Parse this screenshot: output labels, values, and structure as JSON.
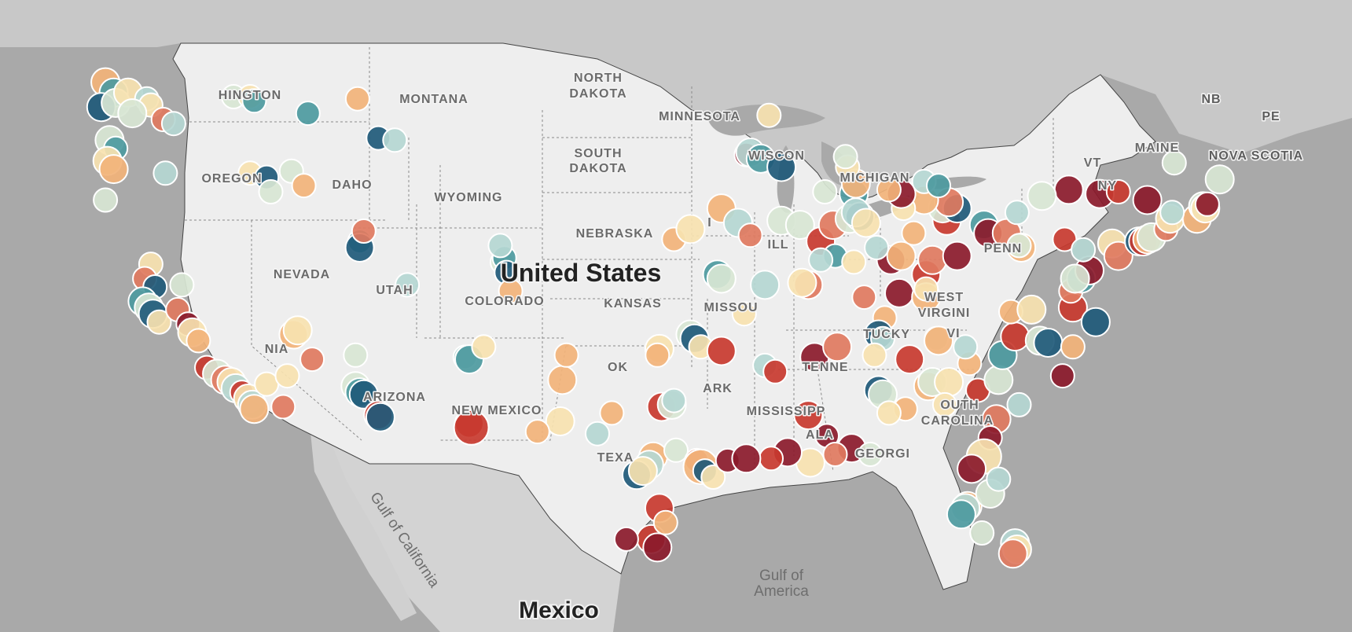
{
  "map": {
    "countries": {
      "us": "United States",
      "mexico": "Mexico"
    },
    "water": {
      "gulf_california": "Gulf of California",
      "gulf_america_1": "Gulf of",
      "gulf_america_2": "America"
    },
    "states": {
      "washington": "HINGTON",
      "oregon": "OREGON",
      "idaho": "DAHO",
      "montana": "MONTANA",
      "wyoming": "WYOMING",
      "nevada": "NEVADA",
      "utah": "UTAH",
      "colorado": "COLORADO",
      "california": "NIA",
      "arizona": "ARIZONA",
      "new_mexico": "NEW MEXICO",
      "north_dakota_1": "NORTH",
      "north_dakota_2": "DAKOTA",
      "south_dakota_1": "SOUTH",
      "south_dakota_2": "DAKOTA",
      "nebraska": "NEBRASKA",
      "kansas": "KANSAS",
      "oklahoma": "OK",
      "texas": "TEXA",
      "minnesota": "MINNESOTA",
      "wisconsin": "WISCON",
      "iowa": "I",
      "missouri": "MISSOU",
      "arkansas": "ARK",
      "mississippi": "MISSISSIPP",
      "illinois": "ILL",
      "michigan": "MICHIGAN",
      "kentucky": "TUCKY",
      "tennessee": "TENNE",
      "alabama": "ALA",
      "georgia": "GEORGI",
      "south_carolina_1": "OUTH",
      "south_carolina_2": "CAROLINA",
      "west_virginia_1": "WEST",
      "west_virginia_2": "VIRGINI",
      "virginia": "VI",
      "pennsylvania": "PENN",
      "maine": "MAINE",
      "vermont": "VT",
      "new_york": "NY"
    },
    "foreign": {
      "nb": "NB",
      "pe": "PE",
      "nova_scotia": "NOVA SCOTIA"
    },
    "colors": {
      "land": "#eeeeee",
      "water": "#a9a9a9",
      "canada": "#c8c8c8",
      "mexico_land": "#d3d3d3",
      "border": "#444444",
      "state_line": "#8a8a8a",
      "scale": [
        "#8b1a2b",
        "#c8392f",
        "#e07a5f",
        "#f2b37a",
        "#f7e2b0",
        "#d8e6d4",
        "#b5d7d2",
        "#4d9aa0",
        "#1f5a7a"
      ]
    }
  },
  "chart_data": {
    "type": "scatter",
    "title": "",
    "description_units": "lon / lat / color index (0 = dark red … 8 = dark teal) / radius class",
    "points": [
      [
        -124.2,
        48.4,
        3,
        1
      ],
      [
        -123.8,
        47.9,
        7,
        1
      ],
      [
        -124.4,
        47.2,
        8,
        1
      ],
      [
        -123.7,
        47.4,
        5,
        1
      ],
      [
        -123.1,
        47.9,
        4,
        1
      ],
      [
        -122.2,
        47.6,
        6,
        0
      ],
      [
        -122.0,
        47.3,
        4,
        0
      ],
      [
        -122.9,
        46.9,
        5,
        1
      ],
      [
        -121.4,
        46.6,
        2,
        0
      ],
      [
        -120.9,
        46.4,
        6,
        0
      ],
      [
        -118.0,
        47.7,
        5,
        0
      ],
      [
        -117.2,
        47.7,
        4,
        0
      ],
      [
        -117.0,
        47.5,
        7,
        0
      ],
      [
        -114.4,
        46.9,
        7,
        0
      ],
      [
        -112.0,
        47.6,
        3,
        0
      ],
      [
        -111.0,
        45.7,
        8,
        0
      ],
      [
        -110.2,
        45.6,
        6,
        0
      ],
      [
        -124.0,
        45.6,
        5,
        1
      ],
      [
        -123.7,
        45.2,
        7,
        0
      ],
      [
        -124.1,
        44.6,
        4,
        1
      ],
      [
        -123.8,
        44.2,
        3,
        1
      ],
      [
        -121.3,
        44.0,
        6,
        0
      ],
      [
        -117.2,
        44.0,
        4,
        0
      ],
      [
        -116.4,
        43.8,
        8,
        0
      ],
      [
        -115.2,
        44.1,
        5,
        0
      ],
      [
        -114.6,
        43.4,
        3,
        0
      ],
      [
        -116.2,
        43.1,
        5,
        0
      ],
      [
        -124.2,
        42.7,
        5,
        0
      ],
      [
        -122.0,
        39.6,
        4,
        0
      ],
      [
        -122.3,
        38.9,
        2,
        0
      ],
      [
        -121.8,
        38.5,
        8,
        0
      ],
      [
        -122.4,
        37.8,
        7,
        1
      ],
      [
        -122.1,
        37.5,
        5,
        1
      ],
      [
        -121.9,
        37.2,
        8,
        1
      ],
      [
        -121.6,
        36.8,
        4,
        0
      ],
      [
        -120.5,
        38.6,
        5,
        0
      ],
      [
        -120.7,
        37.4,
        2,
        0
      ],
      [
        -120.2,
        36.7,
        0,
        0
      ],
      [
        -120.0,
        36.3,
        4,
        1
      ],
      [
        -119.7,
        35.9,
        3,
        0
      ],
      [
        -119.3,
        34.6,
        1,
        0
      ],
      [
        -118.8,
        34.3,
        5,
        1
      ],
      [
        -118.4,
        34.0,
        2,
        1
      ],
      [
        -118.1,
        33.9,
        4,
        1
      ],
      [
        -117.9,
        33.6,
        6,
        1
      ],
      [
        -117.6,
        33.4,
        1,
        0
      ],
      [
        -117.3,
        33.1,
        4,
        1
      ],
      [
        -117.1,
        32.8,
        6,
        1
      ],
      [
        -117.0,
        32.6,
        3,
        1
      ],
      [
        -116.4,
        33.8,
        4,
        0
      ],
      [
        -115.6,
        32.7,
        2,
        0
      ],
      [
        -115.1,
        36.2,
        3,
        1
      ],
      [
        -114.9,
        36.4,
        4,
        1
      ],
      [
        -114.2,
        35.0,
        2,
        0
      ],
      [
        -115.4,
        34.2,
        4,
        0
      ],
      [
        -112.1,
        35.2,
        5,
        0
      ],
      [
        -112.1,
        33.7,
        5,
        1
      ],
      [
        -111.9,
        33.4,
        7,
        1
      ],
      [
        -111.7,
        33.3,
        8,
        1
      ],
      [
        -111.0,
        32.3,
        1,
        1
      ],
      [
        -110.9,
        32.2,
        8,
        1
      ],
      [
        -111.9,
        40.7,
        7,
        0
      ],
      [
        -111.9,
        40.4,
        8,
        1
      ],
      [
        -111.7,
        41.2,
        2,
        0
      ],
      [
        -109.6,
        38.6,
        6,
        0
      ],
      [
        -105.0,
        39.7,
        5,
        0
      ],
      [
        -104.9,
        39.9,
        7,
        0
      ],
      [
        -105.1,
        40.5,
        6,
        0
      ],
      [
        -104.8,
        39.2,
        8,
        0
      ],
      [
        -104.6,
        38.3,
        3,
        0
      ],
      [
        -106.8,
        35.1,
        6,
        0
      ],
      [
        -106.6,
        35.0,
        7,
        1
      ],
      [
        -105.9,
        35.6,
        4,
        0
      ],
      [
        -106.6,
        31.9,
        1,
        1
      ],
      [
        -106.5,
        31.7,
        1,
        2
      ],
      [
        -102.1,
        34.0,
        3,
        1
      ],
      [
        -102.2,
        32.0,
        4,
        1
      ],
      [
        -101.9,
        35.2,
        3,
        0
      ],
      [
        -103.3,
        31.5,
        3,
        0
      ],
      [
        -100.4,
        31.4,
        6,
        0
      ],
      [
        -99.7,
        32.4,
        3,
        0
      ],
      [
        -97.3,
        32.7,
        1,
        1
      ],
      [
        -96.8,
        32.8,
        5,
        1
      ],
      [
        -96.7,
        33.0,
        6,
        0
      ],
      [
        -97.7,
        30.3,
        3,
        1
      ],
      [
        -97.9,
        29.9,
        6,
        1
      ],
      [
        -98.5,
        29.4,
        8,
        1
      ],
      [
        -98.2,
        29.6,
        4,
        1
      ],
      [
        -96.6,
        30.6,
        5,
        0
      ],
      [
        -95.6,
        30.1,
        2,
        0
      ],
      [
        -95.4,
        29.8,
        3,
        2
      ],
      [
        -95.2,
        29.6,
        8,
        0
      ],
      [
        -94.8,
        29.3,
        4,
        0
      ],
      [
        -94.1,
        30.1,
        0,
        0
      ],
      [
        -97.4,
        27.8,
        1,
        1
      ],
      [
        -97.8,
        26.3,
        1,
        1
      ],
      [
        -97.5,
        25.9,
        0,
        1
      ],
      [
        -97.1,
        27.1,
        3,
        0
      ],
      [
        -99.0,
        26.3,
        0,
        0
      ],
      [
        -97.4,
        35.5,
        4,
        1
      ],
      [
        -97.5,
        35.2,
        3,
        0
      ],
      [
        -95.9,
        36.2,
        5,
        1
      ],
      [
        -95.7,
        36.0,
        8,
        1
      ],
      [
        -95.4,
        35.6,
        4,
        0
      ],
      [
        -94.4,
        35.4,
        1,
        1
      ],
      [
        -92.3,
        34.7,
        6,
        0
      ],
      [
        -91.8,
        34.4,
        1,
        0
      ],
      [
        -93.3,
        37.2,
        4,
        0
      ],
      [
        -94.6,
        39.1,
        7,
        1
      ],
      [
        -94.4,
        38.9,
        5,
        1
      ],
      [
        -92.3,
        38.6,
        6,
        1
      ],
      [
        -90.2,
        38.6,
        2,
        1
      ],
      [
        -90.5,
        38.7,
        4,
        1
      ],
      [
        -96.7,
        40.8,
        3,
        0
      ],
      [
        -95.9,
        41.3,
        4,
        1
      ],
      [
        -94.4,
        42.3,
        3,
        1
      ],
      [
        -93.6,
        41.6,
        6,
        1
      ],
      [
        -93.0,
        41.0,
        2,
        0
      ],
      [
        -91.5,
        41.7,
        5,
        1
      ],
      [
        -90.6,
        41.5,
        5,
        1
      ],
      [
        -93.2,
        44.9,
        0,
        0
      ],
      [
        -93.0,
        45.0,
        6,
        1
      ],
      [
        -92.5,
        44.7,
        7,
        1
      ],
      [
        -92.1,
        46.8,
        4,
        0
      ],
      [
        -91.5,
        44.3,
        8,
        1
      ],
      [
        -89.4,
        43.1,
        5,
        0
      ],
      [
        -88.0,
        43.0,
        7,
        1
      ],
      [
        -87.9,
        43.5,
        3,
        1
      ],
      [
        -88.3,
        44.3,
        4,
        0
      ],
      [
        -89.6,
        40.7,
        1,
        1
      ],
      [
        -89.0,
        41.5,
        2,
        1
      ],
      [
        -88.2,
        41.8,
        5,
        1
      ],
      [
        -87.7,
        41.9,
        8,
        1
      ],
      [
        -87.9,
        42.1,
        6,
        1
      ],
      [
        -87.4,
        41.6,
        4,
        1
      ],
      [
        -88.9,
        40.0,
        7,
        0
      ],
      [
        -89.6,
        39.8,
        6,
        0
      ],
      [
        -88.0,
        39.7,
        4,
        0
      ],
      [
        -86.2,
        39.8,
        0,
        1
      ],
      [
        -85.7,
        40.0,
        3,
        1
      ],
      [
        -86.9,
        40.4,
        6,
        0
      ],
      [
        -87.5,
        38.0,
        2,
        0
      ],
      [
        -85.1,
        41.1,
        3,
        0
      ],
      [
        -84.5,
        39.1,
        1,
        1
      ],
      [
        -84.2,
        39.8,
        2,
        1
      ],
      [
        -83.0,
        40.0,
        0,
        1
      ],
      [
        -81.7,
        41.5,
        7,
        1
      ],
      [
        -81.5,
        41.1,
        0,
        1
      ],
      [
        -80.6,
        41.1,
        2,
        1
      ],
      [
        -83.5,
        41.7,
        1,
        1
      ],
      [
        -83.7,
        42.3,
        5,
        1
      ],
      [
        -83.0,
        42.3,
        8,
        1
      ],
      [
        -83.4,
        42.6,
        2,
        1
      ],
      [
        -84.6,
        42.7,
        3,
        1
      ],
      [
        -85.6,
        42.3,
        4,
        0
      ],
      [
        -85.7,
        43.0,
        0,
        1
      ],
      [
        -84.6,
        43.6,
        6,
        0
      ],
      [
        -83.9,
        43.4,
        7,
        0
      ],
      [
        -86.3,
        43.2,
        3,
        0
      ],
      [
        -88.4,
        44.8,
        5,
        0
      ],
      [
        -85.8,
        38.2,
        0,
        1
      ],
      [
        -84.5,
        38.0,
        3,
        1
      ],
      [
        -84.5,
        38.4,
        4,
        0
      ],
      [
        -86.5,
        37.0,
        3,
        0
      ],
      [
        -86.8,
        36.2,
        8,
        1
      ],
      [
        -86.6,
        36.0,
        6,
        0
      ],
      [
        -85.3,
        35.0,
        1,
        1
      ],
      [
        -84.0,
        36.0,
        5,
        0
      ],
      [
        -83.9,
        35.9,
        3,
        1
      ],
      [
        -89.9,
        35.1,
        0,
        1
      ],
      [
        -88.8,
        35.6,
        2,
        1
      ],
      [
        -87.0,
        35.2,
        4,
        0
      ],
      [
        -86.8,
        33.5,
        8,
        1
      ],
      [
        -86.6,
        33.3,
        5,
        1
      ],
      [
        -85.5,
        32.6,
        3,
        0
      ],
      [
        -86.3,
        32.4,
        4,
        0
      ],
      [
        -88.1,
        30.7,
        0,
        1
      ],
      [
        -87.2,
        30.4,
        5,
        0
      ],
      [
        -90.2,
        32.3,
        1,
        1
      ],
      [
        -89.3,
        31.3,
        0,
        0
      ],
      [
        -88.9,
        30.4,
        2,
        0
      ],
      [
        -90.1,
        30.0,
        4,
        1
      ],
      [
        -91.2,
        30.5,
        0,
        1
      ],
      [
        -92.0,
        30.2,
        1,
        0
      ],
      [
        -93.2,
        30.2,
        0,
        1
      ],
      [
        -84.4,
        33.7,
        3,
        1
      ],
      [
        -84.2,
        33.9,
        5,
        1
      ],
      [
        -83.4,
        33.9,
        4,
        1
      ],
      [
        -83.6,
        32.8,
        4,
        0
      ],
      [
        -82.0,
        33.5,
        1,
        0
      ],
      [
        -81.1,
        32.1,
        2,
        1
      ],
      [
        -81.4,
        31.2,
        0,
        0
      ],
      [
        -81.0,
        34.0,
        5,
        1
      ],
      [
        -80.0,
        32.8,
        6,
        0
      ],
      [
        -82.4,
        34.8,
        3,
        0
      ],
      [
        -81.7,
        30.3,
        4,
        2
      ],
      [
        -82.3,
        29.7,
        0,
        1
      ],
      [
        -82.5,
        27.9,
        3,
        1
      ],
      [
        -82.6,
        27.8,
        6,
        1
      ],
      [
        -81.4,
        28.5,
        5,
        1
      ],
      [
        -81.0,
        29.2,
        6,
        0
      ],
      [
        -80.2,
        26.1,
        6,
        1
      ],
      [
        -80.1,
        25.8,
        4,
        1
      ],
      [
        -80.3,
        25.6,
        2,
        1
      ],
      [
        -81.8,
        26.6,
        5,
        0
      ],
      [
        -82.8,
        27.5,
        7,
        1
      ],
      [
        -80.8,
        35.2,
        7,
        1
      ],
      [
        -80.2,
        36.1,
        1,
        1
      ],
      [
        -79.0,
        35.9,
        5,
        1
      ],
      [
        -78.6,
        35.8,
        8,
        1
      ],
      [
        -77.9,
        34.2,
        0,
        0
      ],
      [
        -77.4,
        35.6,
        3,
        0
      ],
      [
        -82.6,
        35.6,
        6,
        0
      ],
      [
        -80.4,
        37.3,
        3,
        0
      ],
      [
        -79.4,
        37.4,
        4,
        1
      ],
      [
        -77.4,
        37.5,
        1,
        1
      ],
      [
        -76.3,
        36.8,
        8,
        1
      ],
      [
        -77.5,
        38.3,
        2,
        0
      ],
      [
        -77.0,
        38.9,
        7,
        1
      ],
      [
        -76.6,
        39.3,
        0,
        1
      ],
      [
        -77.3,
        38.9,
        5,
        1
      ],
      [
        -79.9,
        40.4,
        3,
        1
      ],
      [
        -80.0,
        40.5,
        5,
        0
      ],
      [
        -77.8,
        40.8,
        1,
        0
      ],
      [
        -76.9,
        40.3,
        6,
        0
      ],
      [
        -75.5,
        40.6,
        4,
        1
      ],
      [
        -75.2,
        40.0,
        2,
        1
      ],
      [
        -74.2,
        40.7,
        8,
        1
      ],
      [
        -74.0,
        40.7,
        1,
        1
      ],
      [
        -73.8,
        40.8,
        3,
        1
      ],
      [
        -73.6,
        40.9,
        5,
        1
      ],
      [
        -72.9,
        41.3,
        2,
        0
      ],
      [
        -72.7,
        41.8,
        4,
        1
      ],
      [
        -71.4,
        41.8,
        3,
        1
      ],
      [
        -71.1,
        42.4,
        5,
        1
      ],
      [
        -71.0,
        42.3,
        4,
        1
      ],
      [
        -70.9,
        42.5,
        0,
        0
      ],
      [
        -73.8,
        42.7,
        0,
        1
      ],
      [
        -76.1,
        43.0,
        0,
        1
      ],
      [
        -77.6,
        43.2,
        0,
        1
      ],
      [
        -78.9,
        42.9,
        5,
        1
      ],
      [
        -75.2,
        43.1,
        1,
        0
      ],
      [
        -80.1,
        42.1,
        6,
        0
      ],
      [
        -70.3,
        43.7,
        5,
        1
      ],
      [
        -72.6,
        42.1,
        6,
        0
      ],
      [
        -72.5,
        44.5,
        5,
        0
      ]
    ]
  }
}
